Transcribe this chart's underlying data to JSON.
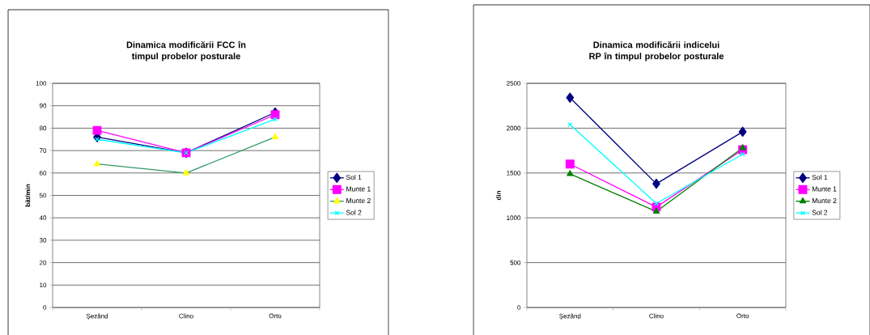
{
  "chart_data": [
    {
      "type": "line",
      "title": "Dinamica modificării FCC  în timpul probelor posturale",
      "ylabel": "băt/min",
      "categories": [
        "Şezând",
        "Clino",
        "Orto"
      ],
      "ylim": [
        0,
        100
      ],
      "yticks": [
        0,
        10,
        20,
        30,
        40,
        50,
        60,
        70,
        80,
        90,
        100
      ],
      "grid": "y",
      "legend": "right",
      "series": [
        {
          "name": "Sol 1",
          "color": "#000080",
          "marker": "diamond",
          "values": [
            76,
            69,
            87
          ]
        },
        {
          "name": "Munte 1",
          "color": "#ff00ff",
          "marker": "square",
          "values": [
            79,
            69,
            86
          ]
        },
        {
          "name": "Munte 2",
          "color": "#339966",
          "colors": [
            "#ffff00",
            "#ffff00",
            "#ffff00"
          ],
          "marker": "triangle",
          "values": [
            64,
            60,
            76
          ]
        },
        {
          "name": "Sol 2",
          "color": "#00ffff",
          "marker": "cross",
          "values": [
            75,
            69,
            84
          ]
        }
      ]
    },
    {
      "type": "line",
      "title": "Dinamica modificării indicelui RP în timpul probelor posturale",
      "ylabel": "din",
      "categories": [
        "Şezând",
        "Clino",
        "Orto"
      ],
      "ylim": [
        0,
        2500
      ],
      "yticks": [
        0,
        500,
        1000,
        1500,
        2000,
        2500
      ],
      "grid": "y",
      "legend": "right",
      "series": [
        {
          "name": "Sol 1",
          "color": "#000080",
          "marker": "diamond",
          "values": [
            2340,
            1380,
            1960
          ]
        },
        {
          "name": "Munte 1",
          "color": "#ff00ff",
          "marker": "square",
          "values": [
            1600,
            1120,
            1760
          ]
        },
        {
          "name": "Munte 2",
          "color": "#008000",
          "marker": "triangle",
          "values": [
            1490,
            1070,
            1780
          ]
        },
        {
          "name": "Sol 2",
          "color": "#00ffff",
          "marker": "cross",
          "values": [
            2040,
            1160,
            1710
          ]
        }
      ]
    }
  ]
}
